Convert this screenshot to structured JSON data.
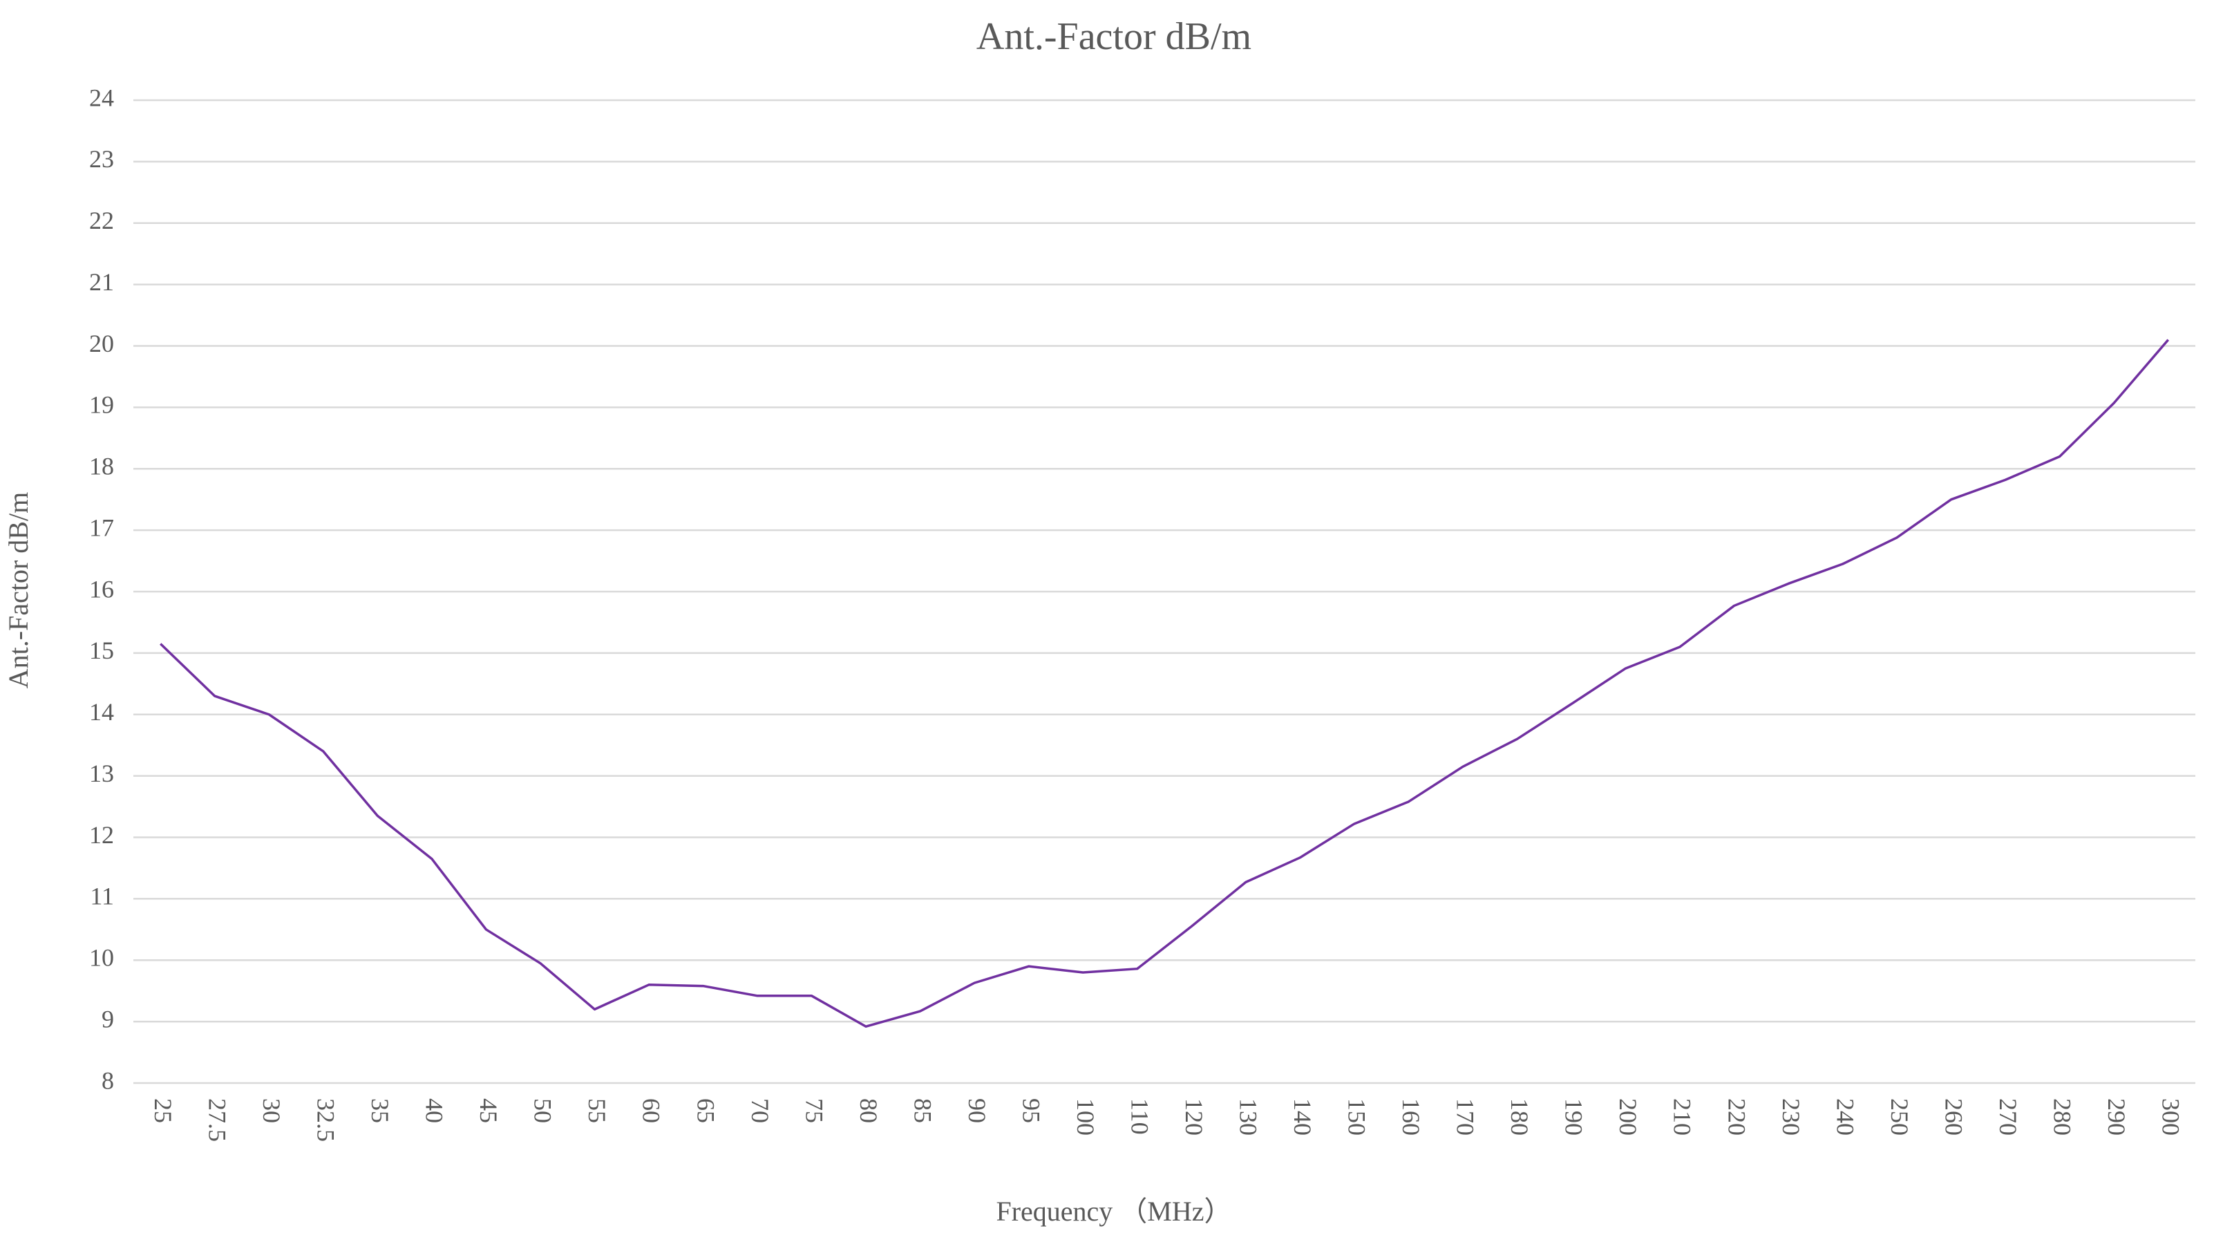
{
  "chart_data": {
    "type": "line",
    "title": "Ant.-Factor dB/m",
    "x_label": "Frequency （MHz）",
    "y_label": "Ant.-Factor dB/m",
    "categories": [
      "25",
      "27.5",
      "30",
      "32.5",
      "35",
      "40",
      "45",
      "50",
      "55",
      "60",
      "65",
      "70",
      "75",
      "80",
      "85",
      "90",
      "95",
      "100",
      "110",
      "120",
      "130",
      "140",
      "150",
      "160",
      "170",
      "180",
      "190",
      "200",
      "210",
      "220",
      "230",
      "240",
      "250",
      "260",
      "270",
      "280",
      "290",
      "300"
    ],
    "values": [
      15.15,
      14.3,
      14.0,
      13.4,
      12.35,
      11.65,
      10.5,
      9.95,
      9.2,
      9.6,
      9.58,
      9.42,
      9.42,
      8.92,
      9.17,
      9.63,
      9.9,
      9.8,
      9.86,
      10.55,
      11.27,
      11.67,
      12.22,
      12.58,
      13.15,
      13.6,
      14.17,
      14.75,
      15.1,
      15.77,
      16.13,
      16.45,
      16.88,
      17.5,
      17.82,
      18.2,
      19.07,
      20.1
    ],
    "color": "#7030a0",
    "ylim": [
      8,
      24
    ],
    "yticks": [
      8,
      9,
      10,
      11,
      12,
      13,
      14,
      15,
      16,
      17,
      18,
      19,
      20,
      21,
      22,
      23,
      24
    ],
    "grid": true
  }
}
